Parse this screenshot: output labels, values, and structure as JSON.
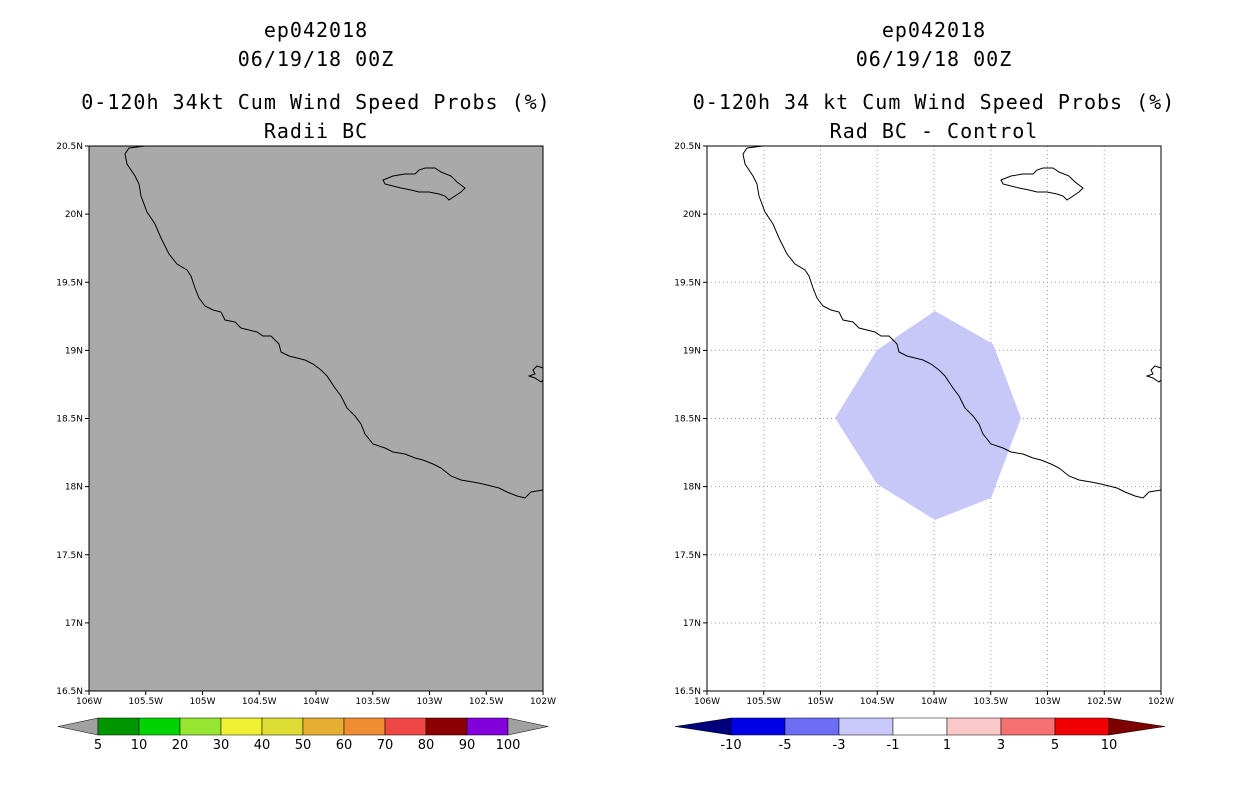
{
  "left_panel": {
    "title_line1": "ep042018",
    "title_line2": "06/19/18 00Z",
    "title_line3": "0-120h 34kt Cum Wind Speed Probs (%)",
    "title_line4": "Radii BC",
    "background_color": "#a9a9a9",
    "colorbar": {
      "colors": [
        "#009600",
        "#00d200",
        "#96e632",
        "#f0f032",
        "#dcdc32",
        "#e6af32",
        "#f08c32",
        "#ef4646",
        "#8c0000",
        "#8200dc"
      ],
      "end_color": "#a0a0a0",
      "labels": [
        "5",
        "10",
        "20",
        "30",
        "40",
        "50",
        "60",
        "70",
        "80",
        "90",
        "100"
      ]
    }
  },
  "right_panel": {
    "title_line1": "ep042018",
    "title_line2": "06/19/18 00Z",
    "title_line3": "0-120h 34 kt Cum Wind Speed Probs (%)",
    "title_line4": "Rad BC - Control",
    "background_color": "#ffffff",
    "fill_color": "#c8c8f8",
    "colorbar": {
      "left_end_color": "#00007d",
      "colors": [
        "#0000e6",
        "#6e6ef5",
        "#c8c8fa",
        "#ffffff",
        "#fac8c8",
        "#f57070",
        "#f00000"
      ],
      "right_end_color": "#7d0000",
      "labels": [
        "-10",
        "-5",
        "-3",
        "-1",
        "1",
        "3",
        "5",
        "10"
      ]
    }
  },
  "map": {
    "lat_labels": [
      "20.5N",
      "20N",
      "19.5N",
      "19N",
      "18.5N",
      "18N",
      "17.5N",
      "17N",
      "16.5N"
    ],
    "lon_labels": [
      "106W",
      "105.5W",
      "105W",
      "104.5W",
      "104W",
      "103.5W",
      "103W",
      "102.5W",
      "102W"
    ],
    "coast_color": "#000000",
    "grid_color": "#a0a0a0"
  }
}
